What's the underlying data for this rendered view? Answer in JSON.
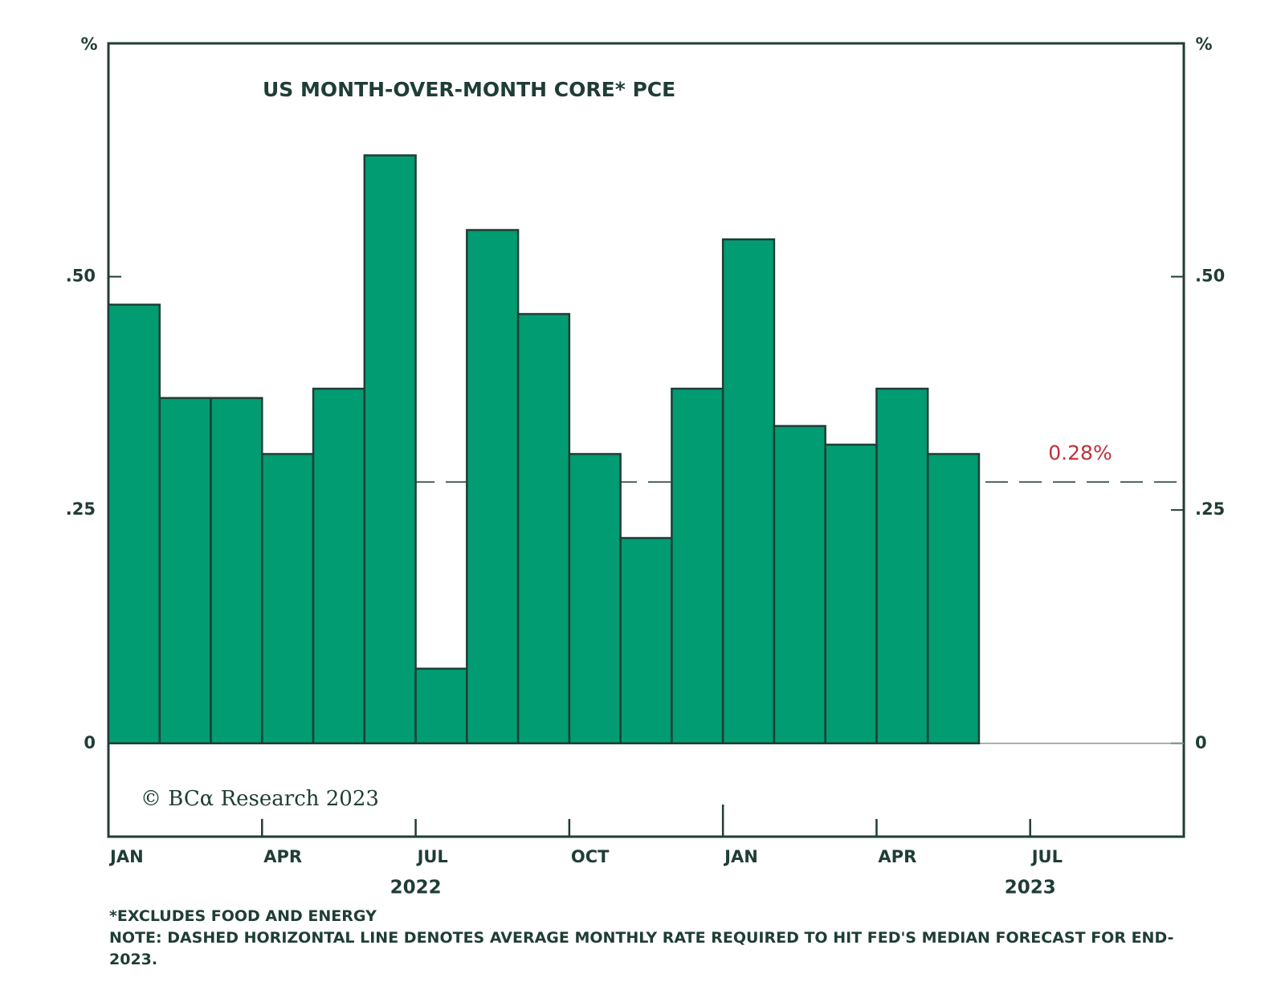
{
  "chart_data": {
    "type": "bar",
    "title": "US MONTH-OVER-MONTH CORE* PCE",
    "y_unit": "%",
    "categories": [
      "JAN",
      null,
      null,
      "APR",
      null,
      null,
      "JUL",
      null,
      null,
      "OCT",
      null,
      null,
      "JAN",
      null,
      null,
      "APR",
      null,
      null,
      "JUL",
      null,
      null
    ],
    "years": [
      "2022",
      "2023"
    ],
    "values": [
      0.47,
      0.37,
      0.37,
      0.31,
      0.38,
      0.63,
      0.08,
      0.55,
      0.46,
      0.31,
      0.22,
      0.38,
      0.54,
      0.34,
      0.32,
      0.38,
      0.31,
      null,
      null,
      null,
      null
    ],
    "color": "#029c72",
    "ylim": [
      -0.1,
      0.75
    ],
    "yticks": [
      {
        "value": 0,
        "label": "0"
      },
      {
        "value": 0.25,
        "label": ".25"
      },
      {
        "value": 0.5,
        "label": ".50"
      }
    ],
    "reference_line": {
      "value": 0.28,
      "label": "0.28%",
      "color": "#c0303a"
    },
    "source": "© BCα Research 2023",
    "notes": [
      "*EXCLUDES FOOD AND ENERGY",
      "NOTE: DASHED HORIZONTAL LINE DENOTES AVERAGE MONTHLY RATE REQUIRED TO HIT FED'S MEDIAN FORECAST FOR END-2023."
    ]
  }
}
